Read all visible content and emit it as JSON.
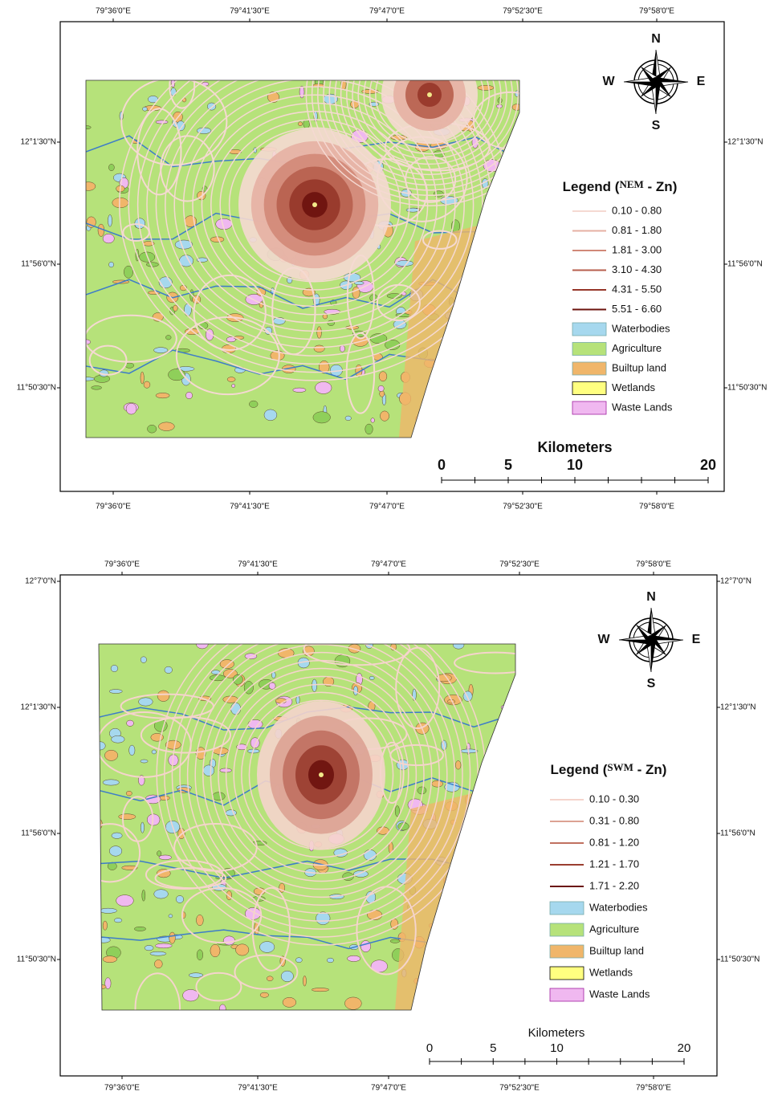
{
  "panels": [
    {
      "top_labels": [
        "79°36'0\"E",
        "79°41'30\"E",
        "79°47'0\"E",
        "79°52'30\"E",
        "79°58'0\"E"
      ],
      "bottom_labels": [
        "79°36'0\"E",
        "79°41'30\"E",
        "79°47'0\"E",
        "79°52'30\"E",
        "79°58'0\"E"
      ],
      "left_labels": [
        "12°1'30\"N",
        "11°56'0\"N",
        "11°50'30\"N"
      ],
      "right_labels": [
        "12°1'30\"N",
        "11°56'0\"N",
        "11°50'30\"N"
      ],
      "compass": {
        "n": "N",
        "e": "E",
        "s": "S",
        "w": "W"
      },
      "legend": {
        "prefix": "Legend (",
        "season": "NEM",
        "suffix": " - Zn)",
        "contour_classes": [
          {
            "label": "0.10 - 0.80",
            "color": "#f5d9d2"
          },
          {
            "label": "0.81 - 1.80",
            "color": "#e6b0a3"
          },
          {
            "label": "1.81 - 3.00",
            "color": "#d18878"
          },
          {
            "label": "3.10 - 4.30",
            "color": "#b75f4e"
          },
          {
            "label": "4.31 - 5.50",
            "color": "#963629"
          },
          {
            "label": "5.51 - 6.60",
            "color": "#6b120d"
          }
        ],
        "land_classes": [
          {
            "label": "Waterbodies",
            "color": "#a6d8ee"
          },
          {
            "label": "Agriculture",
            "color": "#b6e27a"
          },
          {
            "label": "Builtup land",
            "color": "#f0b66a"
          },
          {
            "label": "Wetlands",
            "color": "#ffff80"
          },
          {
            "label": "Waste Lands",
            "color": "#f0b8f0"
          }
        ]
      },
      "scale": {
        "title": "Kilometers",
        "labels": [
          0,
          5,
          10,
          20
        ]
      }
    },
    {
      "top_labels": [
        "79°36'0\"E",
        "79°41'30\"E",
        "79°47'0\"E",
        "79°52'30\"E",
        "79°58'0\"E"
      ],
      "bottom_labels": [
        "79°36'0\"E",
        "79°41'30\"E",
        "79°47'0\"E",
        "79°52'30\"E",
        "79°58'0\"E"
      ],
      "left_labels": [
        "12°7'0\"N",
        "12°1'30\"N",
        "11°56'0\"N",
        "11°50'30\"N"
      ],
      "right_labels": [
        "12°7'0\"N",
        "12°1'30\"N",
        "11°56'0\"N",
        "11°50'30\"N"
      ],
      "compass": {
        "n": "N",
        "e": "E",
        "s": "S",
        "w": "W"
      },
      "legend": {
        "prefix": "Legend (",
        "season": "SWM",
        "suffix": " - Zn)",
        "contour_classes": [
          {
            "label": "0.10 - 0.30",
            "color": "#f5d4cc"
          },
          {
            "label": "0.31 - 0.80",
            "color": "#dca293"
          },
          {
            "label": "0.81 - 1.20",
            "color": "#c07060"
          },
          {
            "label": "1.21 - 1.70",
            "color": "#9a3e30"
          },
          {
            "label": "1.71 - 2.20",
            "color": "#6b120d"
          }
        ],
        "land_classes": [
          {
            "label": "Waterbodies",
            "color": "#a6d8ee"
          },
          {
            "label": "Agriculture",
            "color": "#b6e27a"
          },
          {
            "label": "Builtup land",
            "color": "#f0b66a"
          },
          {
            "label": "Wetlands",
            "color": "#ffff80"
          },
          {
            "label": "Waste Lands",
            "color": "#f0b8f0"
          }
        ]
      },
      "scale": {
        "title": "Kilometers",
        "labels": [
          0,
          5,
          10,
          20
        ]
      }
    }
  ]
}
